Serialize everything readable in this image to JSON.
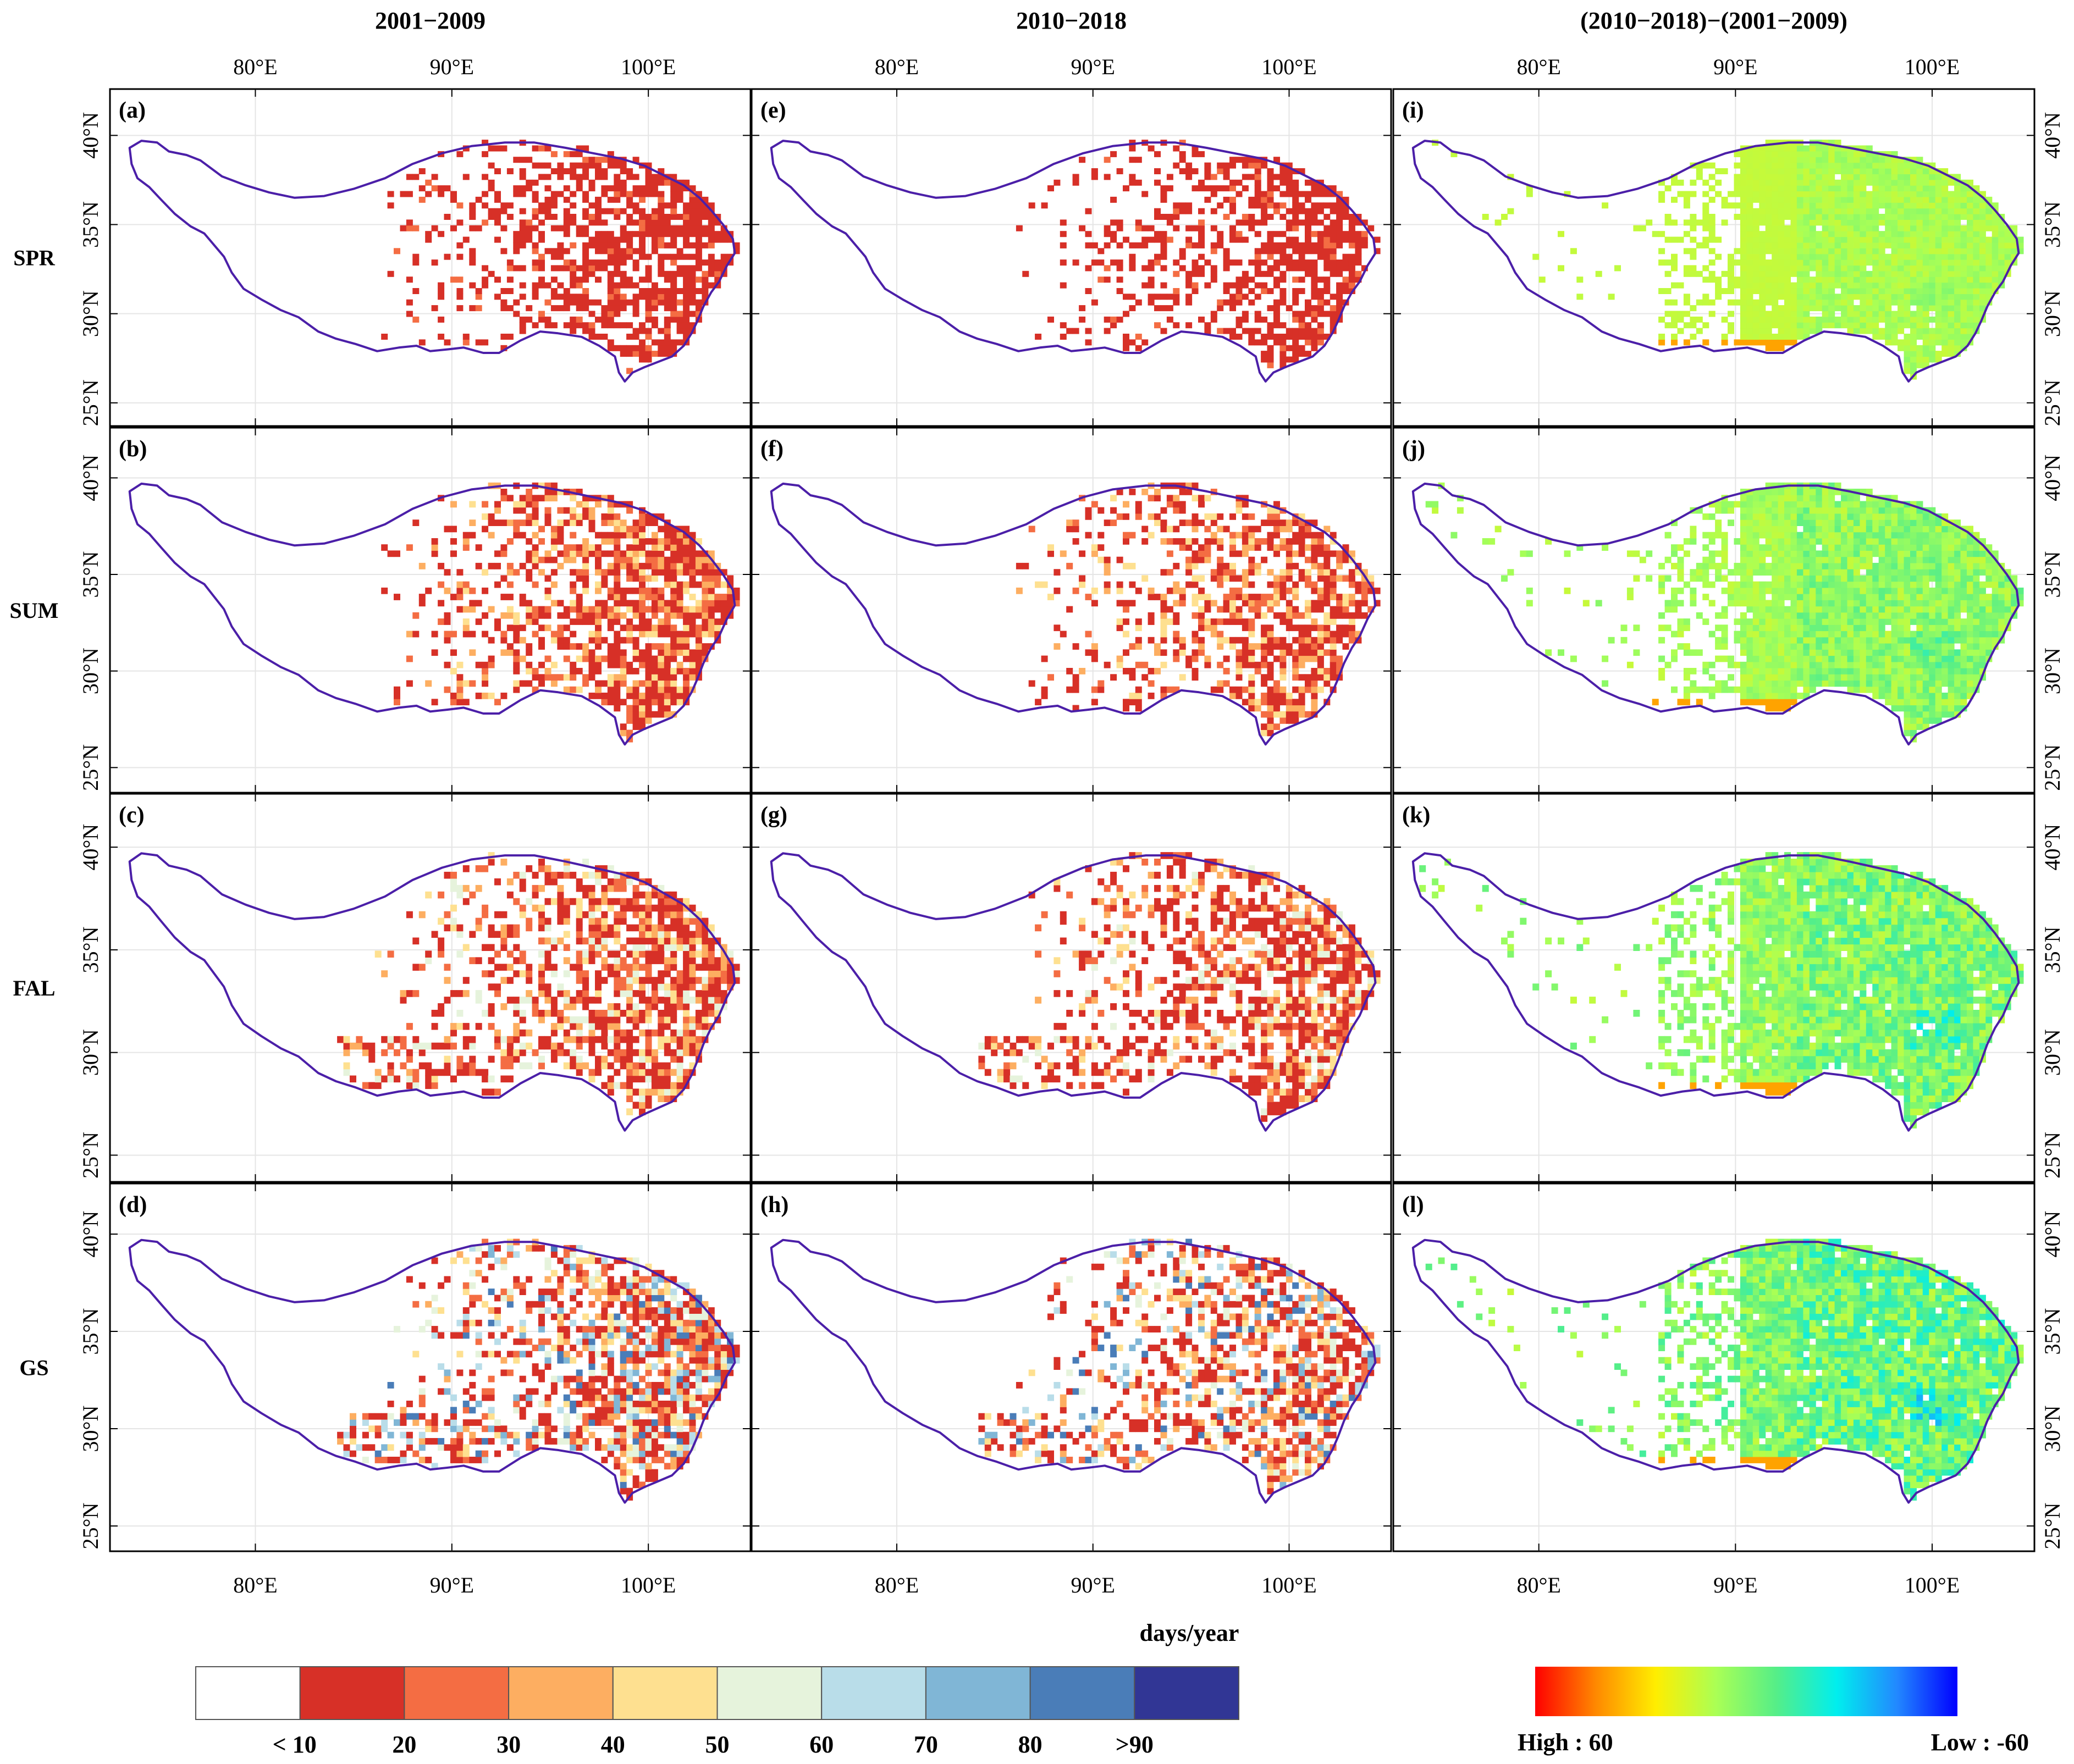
{
  "chart_data": {
    "type": "heatmap",
    "columns": [
      {
        "title": "2001−2009",
        "kind": "days"
      },
      {
        "title": "2010−2018",
        "kind": "days"
      },
      {
        "title": "(2010−2018)−(2001−2009)",
        "kind": "diff"
      }
    ],
    "rows": [
      "SPR",
      "SUM",
      "FAL",
      "GS"
    ],
    "panels": [
      [
        "(a)",
        "(e)",
        "(i)"
      ],
      [
        "(b)",
        "(f)",
        "(j)"
      ],
      [
        "(c)",
        "(g)",
        "(k)"
      ],
      [
        "(d)",
        "(h)",
        "(l)"
      ]
    ],
    "x_ticks": [
      "80°E",
      "90°E",
      "100°E"
    ],
    "x_tick_values": [
      80,
      90,
      100
    ],
    "y_ticks": [
      "40°N",
      "35°N",
      "30°N",
      "25°N"
    ],
    "y_tick_values": [
      40,
      35,
      30,
      25
    ],
    "xlim": [
      72.6,
      105.2
    ],
    "ylim": [
      23.7,
      42.6
    ],
    "legend_title": "days/year",
    "days_legend": {
      "labels": [
        "< 10",
        "20",
        "30",
        "40",
        "50",
        "60",
        "70",
        "80",
        ">90"
      ],
      "colors": [
        "#ffffff",
        "#d73027",
        "#f46d43",
        "#fdae61",
        "#fee090",
        "#e6f3dc",
        "#b9dde9",
        "#80b6d6",
        "#4a7db8",
        "#313695"
      ]
    },
    "diff_legend": {
      "high_label": "High : 60",
      "low_label": "Low : -60",
      "high_value": 60,
      "low_value": -60,
      "gradient": [
        "#ff0000",
        "#ff8800",
        "#ffee00",
        "#aaff55",
        "#55ee88",
        "#00eeee",
        "#2288ff",
        "#0000ff"
      ]
    },
    "colors": {
      "outline": "#4b1fa8",
      "grid": "#e5e5e5",
      "frame": "#000000"
    }
  }
}
